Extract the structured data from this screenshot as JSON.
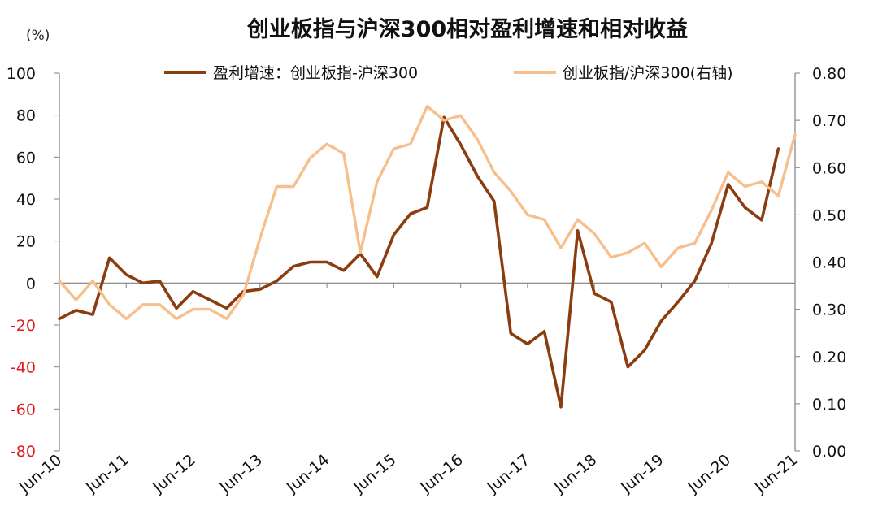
{
  "chart_data": {
    "type": "line",
    "title": "创业板指与沪深300相对盈利增速和相对收益",
    "left_axis_unit": "(%)",
    "left_axis": {
      "ylim": [
        -80,
        100
      ],
      "ticks": [
        "100",
        "80",
        "60",
        "40",
        "20",
        "0",
        "-20",
        "-40",
        "-60",
        "-80"
      ]
    },
    "right_axis": {
      "ylim": [
        0,
        0.8
      ],
      "ticks": [
        "0.80",
        "0.70",
        "0.60",
        "0.50",
        "0.40",
        "0.30",
        "0.20",
        "0.10",
        "0.00"
      ]
    },
    "x_tick_labels": [
      "Jun-10",
      "Jun-11",
      "Jun-12",
      "Jun-13",
      "Jun-14",
      "Jun-15",
      "Jun-16",
      "Jun-17",
      "Jun-18",
      "Jun-19",
      "Jun-20",
      "Jun-21"
    ],
    "legend_placement": "top",
    "grid": false,
    "series": [
      {
        "name": "盈利增速：创业板指-沪深300",
        "axis": "left",
        "color": "#8b3d0f",
        "values": [
          -17,
          -13,
          -15,
          12,
          4,
          0,
          1,
          -12,
          -4,
          -8,
          -12,
          -4,
          -3,
          1,
          8,
          10,
          10,
          6,
          14,
          3,
          23,
          33,
          36,
          79,
          66,
          51,
          39,
          -24,
          -29,
          -23,
          -59,
          25,
          -5,
          -9,
          -40,
          -32,
          -18,
          -9,
          1,
          19,
          47,
          36,
          30,
          64
        ]
      },
      {
        "name": "创业板指/沪深300(右轴)",
        "axis": "right",
        "color": "#f7bf8c",
        "values": [
          0.36,
          0.32,
          0.36,
          0.31,
          0.28,
          0.31,
          0.31,
          0.28,
          0.3,
          0.3,
          0.28,
          0.33,
          0.45,
          0.56,
          0.56,
          0.62,
          0.65,
          0.63,
          0.42,
          0.57,
          0.64,
          0.65,
          0.73,
          0.7,
          0.71,
          0.66,
          0.59,
          0.55,
          0.5,
          0.49,
          0.43,
          0.49,
          0.46,
          0.41,
          0.42,
          0.44,
          0.39,
          0.43,
          0.44,
          0.51,
          0.59,
          0.56,
          0.57,
          0.54,
          0.67
        ]
      }
    ]
  }
}
